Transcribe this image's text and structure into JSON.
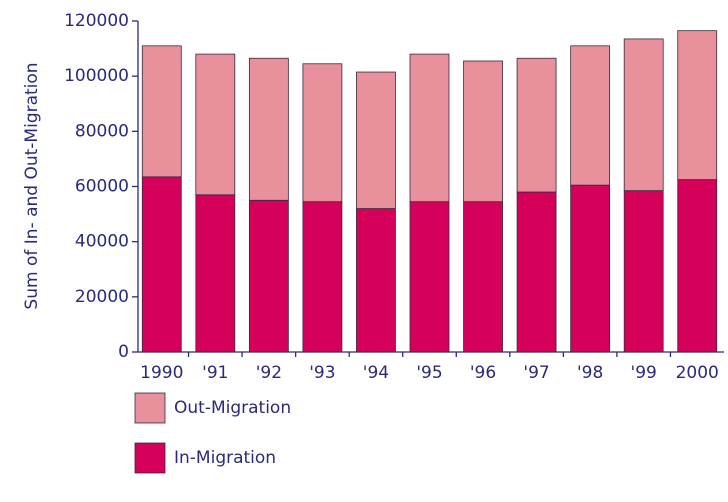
{
  "chart_data": {
    "type": "bar",
    "stacked": true,
    "y_label": "Sum of In- and Out-Migration",
    "categories": [
      "1990",
      "'91",
      "'92",
      "'93",
      "'94",
      "'95",
      "'96",
      "'97",
      "'98",
      "'99",
      "2000"
    ],
    "series": [
      {
        "name": "In-Migration",
        "color": "#d4005a",
        "values": [
          63500,
          57000,
          55000,
          54500,
          52000,
          54500,
          54500,
          58000,
          60500,
          58500,
          62500
        ]
      },
      {
        "name": "Out-Migration",
        "color": "#e8909b",
        "values": [
          47500,
          51000,
          51500,
          50000,
          49500,
          53500,
          51000,
          48500,
          50500,
          55000,
          54000
        ]
      }
    ],
    "ylim": [
      0,
      120000
    ],
    "yticks": [
      0,
      20000,
      40000,
      60000,
      80000,
      100000,
      120000
    ]
  }
}
